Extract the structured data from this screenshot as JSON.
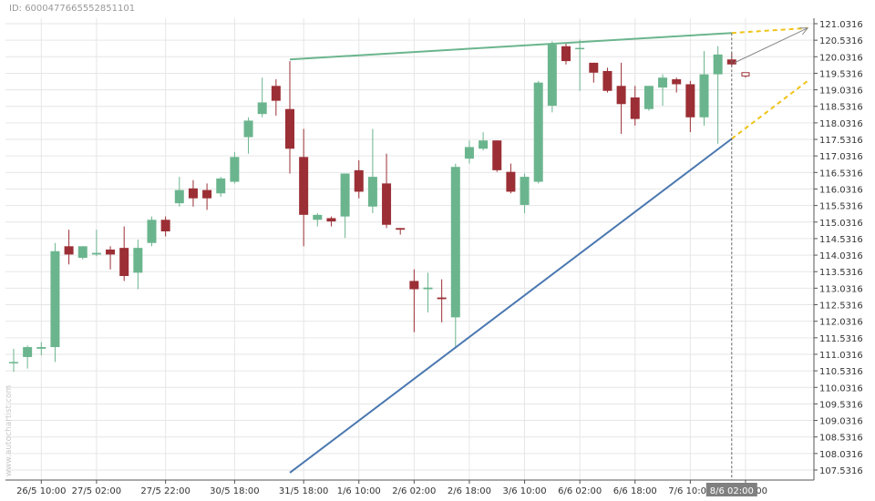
{
  "id_label": "ID: 6000477665552851101",
  "watermark": "www.autochartist.com",
  "colors": {
    "bull": "#6bb58e",
    "bear": "#9b2f35",
    "support": "#4a78b0",
    "resistance": "#6bb58e",
    "projection": "#f0c419",
    "arrow": "#888888",
    "grid": "#e6e6e6",
    "marker_bg": "#808080"
  },
  "chart_data": {
    "type": "candlestick",
    "title": "",
    "y_ticks": [
      "121.0316",
      "120.5316",
      "120.0316",
      "119.5316",
      "119.0316",
      "118.5316",
      "118.0316",
      "117.5316",
      "117.0316",
      "116.5316",
      "116.0316",
      "115.5316",
      "115.0316",
      "114.5316",
      "114.0316",
      "113.5316",
      "113.0316",
      "112.5316",
      "112.0316",
      "111.5316",
      "111.0316",
      "110.5316",
      "110.0316",
      "109.5316",
      "109.0316",
      "108.5316",
      "108.0316",
      "107.5316"
    ],
    "ylim": [
      107.2,
      121.3
    ],
    "x_ticks": [
      {
        "label": "26/5 10:00",
        "index": 2
      },
      {
        "label": "27/5 02:00",
        "index": 6
      },
      {
        "label": "27/5 22:00",
        "index": 11
      },
      {
        "label": "30/5 18:00",
        "index": 16
      },
      {
        "label": "31/5 18:00",
        "index": 21
      },
      {
        "label": "1/6 10:00",
        "index": 25
      },
      {
        "label": "2/6 02:00",
        "index": 29
      },
      {
        "label": "2/6 18:00",
        "index": 33
      },
      {
        "label": "3/6 10:00",
        "index": 37
      },
      {
        "label": "6/6 02:00",
        "index": 41
      },
      {
        "label": "6/6 18:00",
        "index": 45
      },
      {
        "label": "7/6 10:00",
        "index": 49
      },
      {
        "label": "8/6 02:00",
        "index": 53
      }
    ],
    "current_label": "8/6 02:00",
    "current_index": 52,
    "candles": [
      {
        "o": 110.8,
        "h": 111.2,
        "l": 110.5,
        "c": 110.8
      },
      {
        "o": 110.95,
        "h": 111.3,
        "l": 110.6,
        "c": 111.25
      },
      {
        "o": 111.2,
        "h": 111.4,
        "l": 111.0,
        "c": 111.25
      },
      {
        "o": 111.25,
        "h": 114.4,
        "l": 110.8,
        "c": 114.15
      },
      {
        "o": 114.3,
        "h": 114.8,
        "l": 113.75,
        "c": 114.05
      },
      {
        "o": 113.95,
        "h": 114.3,
        "l": 113.9,
        "c": 114.3
      },
      {
        "o": 114.05,
        "h": 114.8,
        "l": 114.0,
        "c": 114.1
      },
      {
        "o": 114.2,
        "h": 114.3,
        "l": 113.6,
        "c": 114.05
      },
      {
        "o": 114.25,
        "h": 114.9,
        "l": 113.25,
        "c": 113.4
      },
      {
        "o": 113.5,
        "h": 114.5,
        "l": 113.0,
        "c": 114.25
      },
      {
        "o": 114.4,
        "h": 115.2,
        "l": 114.3,
        "c": 115.1
      },
      {
        "o": 115.1,
        "h": 115.2,
        "l": 114.6,
        "c": 114.75
      },
      {
        "o": 115.6,
        "h": 116.4,
        "l": 115.5,
        "c": 116.0
      },
      {
        "o": 116.05,
        "h": 116.3,
        "l": 115.5,
        "c": 115.75
      },
      {
        "o": 116.0,
        "h": 116.2,
        "l": 115.4,
        "c": 115.75
      },
      {
        "o": 115.9,
        "h": 116.4,
        "l": 115.8,
        "c": 116.35
      },
      {
        "o": 116.25,
        "h": 117.15,
        "l": 116.2,
        "c": 117.0
      },
      {
        "o": 117.6,
        "h": 118.2,
        "l": 117.1,
        "c": 118.1
      },
      {
        "o": 118.3,
        "h": 119.4,
        "l": 118.2,
        "c": 118.65
      },
      {
        "o": 119.15,
        "h": 119.35,
        "l": 118.25,
        "c": 118.7
      },
      {
        "o": 118.45,
        "h": 119.9,
        "l": 116.5,
        "c": 117.25
      },
      {
        "o": 117.0,
        "h": 117.85,
        "l": 114.3,
        "c": 115.25
      },
      {
        "o": 115.1,
        "h": 115.3,
        "l": 114.9,
        "c": 115.25
      },
      {
        "o": 115.15,
        "h": 115.2,
        "l": 114.9,
        "c": 115.05
      },
      {
        "o": 115.2,
        "h": 116.5,
        "l": 114.55,
        "c": 116.5
      },
      {
        "o": 116.6,
        "h": 116.9,
        "l": 115.75,
        "c": 115.95
      },
      {
        "o": 115.5,
        "h": 117.85,
        "l": 115.3,
        "c": 116.4
      },
      {
        "o": 116.2,
        "h": 117.1,
        "l": 114.85,
        "c": 114.95
      },
      {
        "o": 114.85,
        "h": 114.85,
        "l": 114.65,
        "c": 114.8
      },
      {
        "o": 113.25,
        "h": 113.6,
        "l": 111.7,
        "c": 113.0
      },
      {
        "o": 113.0,
        "h": 113.5,
        "l": 112.3,
        "c": 113.05
      },
      {
        "o": 112.75,
        "h": 113.3,
        "l": 112.0,
        "c": 112.7
      },
      {
        "o": 112.15,
        "h": 116.8,
        "l": 111.2,
        "c": 116.7
      },
      {
        "o": 116.95,
        "h": 117.5,
        "l": 116.8,
        "c": 117.3
      },
      {
        "o": 117.25,
        "h": 117.75,
        "l": 117.2,
        "c": 117.5
      },
      {
        "o": 117.5,
        "h": 117.5,
        "l": 116.55,
        "c": 116.6
      },
      {
        "o": 116.55,
        "h": 116.8,
        "l": 115.9,
        "c": 115.95
      },
      {
        "o": 115.55,
        "h": 116.5,
        "l": 115.3,
        "c": 116.4
      },
      {
        "o": 116.25,
        "h": 119.3,
        "l": 116.2,
        "c": 119.25
      },
      {
        "o": 118.55,
        "h": 120.5,
        "l": 118.35,
        "c": 120.4
      },
      {
        "o": 120.35,
        "h": 120.45,
        "l": 119.8,
        "c": 119.9
      },
      {
        "o": 120.3,
        "h": 120.55,
        "l": 119.0,
        "c": 120.3
      },
      {
        "o": 119.85,
        "h": 119.85,
        "l": 119.25,
        "c": 119.55
      },
      {
        "o": 119.6,
        "h": 119.7,
        "l": 118.95,
        "c": 119.0
      },
      {
        "o": 119.15,
        "h": 119.85,
        "l": 117.7,
        "c": 118.6
      },
      {
        "o": 118.8,
        "h": 119.15,
        "l": 117.95,
        "c": 118.15
      },
      {
        "o": 118.45,
        "h": 119.15,
        "l": 118.4,
        "c": 119.15
      },
      {
        "o": 119.1,
        "h": 119.5,
        "l": 118.55,
        "c": 119.4
      },
      {
        "o": 119.35,
        "h": 119.4,
        "l": 118.95,
        "c": 119.2
      },
      {
        "o": 119.2,
        "h": 119.3,
        "l": 117.75,
        "c": 118.2
      },
      {
        "o": 118.2,
        "h": 120.2,
        "l": 117.95,
        "c": 119.5
      },
      {
        "o": 119.5,
        "h": 120.35,
        "l": 117.4,
        "c": 120.1
      },
      {
        "o": 119.95,
        "h": 120.15,
        "l": 119.75,
        "c": 119.8
      },
      {
        "o": 119.55,
        "h": 119.55,
        "l": 119.4,
        "c": 119.45
      }
    ],
    "pattern": {
      "resistance": {
        "from": {
          "index": 20,
          "value": 119.95
        },
        "to": {
          "index": 52,
          "value": 120.75
        }
      },
      "support": {
        "from": {
          "index": 20,
          "value": 107.45
        },
        "to": {
          "index": 52,
          "value": 117.55
        }
      },
      "projection_upper": {
        "from": {
          "index": 52,
          "value": 120.75
        },
        "to": {
          "index": 57.5,
          "value": 120.9
        }
      },
      "projection_lower": {
        "from": {
          "index": 52,
          "value": 117.55
        },
        "to": {
          "index": 57.5,
          "value": 119.3
        }
      },
      "arrow": {
        "from": {
          "index": 52.2,
          "value": 119.85
        },
        "to": {
          "index": 57.5,
          "value": 120.9
        }
      }
    }
  }
}
